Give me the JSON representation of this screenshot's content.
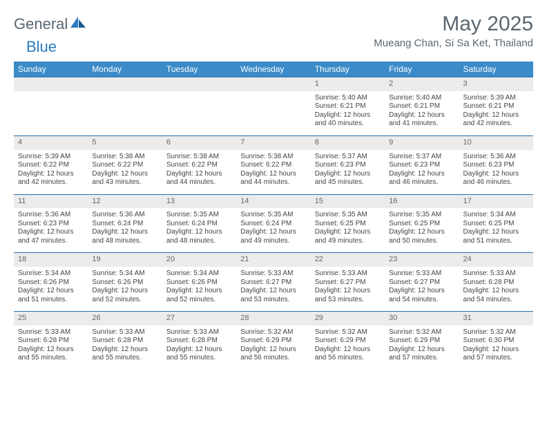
{
  "logo": {
    "text1": "General",
    "text2": "Blue"
  },
  "header": {
    "title": "May 2025",
    "location": "Mueang Chan, Si Sa Ket, Thailand"
  },
  "calendar": {
    "day_headers": [
      "Sunday",
      "Monday",
      "Tuesday",
      "Wednesday",
      "Thursday",
      "Friday",
      "Saturday"
    ],
    "header_bg": "#3b8bc8",
    "header_fg": "#ffffff",
    "border_color": "#2b6fa8",
    "daynum_bg": "#ececec",
    "weeks": [
      [
        {
          "blank": true
        },
        {
          "blank": true
        },
        {
          "blank": true
        },
        {
          "blank": true
        },
        {
          "day": "1",
          "sunrise": "Sunrise: 5:40 AM",
          "sunset": "Sunset: 6:21 PM",
          "daylight1": "Daylight: 12 hours",
          "daylight2": "and 40 minutes."
        },
        {
          "day": "2",
          "sunrise": "Sunrise: 5:40 AM",
          "sunset": "Sunset: 6:21 PM",
          "daylight1": "Daylight: 12 hours",
          "daylight2": "and 41 minutes."
        },
        {
          "day": "3",
          "sunrise": "Sunrise: 5:39 AM",
          "sunset": "Sunset: 6:21 PM",
          "daylight1": "Daylight: 12 hours",
          "daylight2": "and 42 minutes."
        }
      ],
      [
        {
          "day": "4",
          "sunrise": "Sunrise: 5:39 AM",
          "sunset": "Sunset: 6:22 PM",
          "daylight1": "Daylight: 12 hours",
          "daylight2": "and 42 minutes."
        },
        {
          "day": "5",
          "sunrise": "Sunrise: 5:38 AM",
          "sunset": "Sunset: 6:22 PM",
          "daylight1": "Daylight: 12 hours",
          "daylight2": "and 43 minutes."
        },
        {
          "day": "6",
          "sunrise": "Sunrise: 5:38 AM",
          "sunset": "Sunset: 6:22 PM",
          "daylight1": "Daylight: 12 hours",
          "daylight2": "and 44 minutes."
        },
        {
          "day": "7",
          "sunrise": "Sunrise: 5:38 AM",
          "sunset": "Sunset: 6:22 PM",
          "daylight1": "Daylight: 12 hours",
          "daylight2": "and 44 minutes."
        },
        {
          "day": "8",
          "sunrise": "Sunrise: 5:37 AM",
          "sunset": "Sunset: 6:23 PM",
          "daylight1": "Daylight: 12 hours",
          "daylight2": "and 45 minutes."
        },
        {
          "day": "9",
          "sunrise": "Sunrise: 5:37 AM",
          "sunset": "Sunset: 6:23 PM",
          "daylight1": "Daylight: 12 hours",
          "daylight2": "and 46 minutes."
        },
        {
          "day": "10",
          "sunrise": "Sunrise: 5:36 AM",
          "sunset": "Sunset: 6:23 PM",
          "daylight1": "Daylight: 12 hours",
          "daylight2": "and 46 minutes."
        }
      ],
      [
        {
          "day": "11",
          "sunrise": "Sunrise: 5:36 AM",
          "sunset": "Sunset: 6:23 PM",
          "daylight1": "Daylight: 12 hours",
          "daylight2": "and 47 minutes."
        },
        {
          "day": "12",
          "sunrise": "Sunrise: 5:36 AM",
          "sunset": "Sunset: 6:24 PM",
          "daylight1": "Daylight: 12 hours",
          "daylight2": "and 48 minutes."
        },
        {
          "day": "13",
          "sunrise": "Sunrise: 5:35 AM",
          "sunset": "Sunset: 6:24 PM",
          "daylight1": "Daylight: 12 hours",
          "daylight2": "and 48 minutes."
        },
        {
          "day": "14",
          "sunrise": "Sunrise: 5:35 AM",
          "sunset": "Sunset: 6:24 PM",
          "daylight1": "Daylight: 12 hours",
          "daylight2": "and 49 minutes."
        },
        {
          "day": "15",
          "sunrise": "Sunrise: 5:35 AM",
          "sunset": "Sunset: 6:25 PM",
          "daylight1": "Daylight: 12 hours",
          "daylight2": "and 49 minutes."
        },
        {
          "day": "16",
          "sunrise": "Sunrise: 5:35 AM",
          "sunset": "Sunset: 6:25 PM",
          "daylight1": "Daylight: 12 hours",
          "daylight2": "and 50 minutes."
        },
        {
          "day": "17",
          "sunrise": "Sunrise: 5:34 AM",
          "sunset": "Sunset: 6:25 PM",
          "daylight1": "Daylight: 12 hours",
          "daylight2": "and 51 minutes."
        }
      ],
      [
        {
          "day": "18",
          "sunrise": "Sunrise: 5:34 AM",
          "sunset": "Sunset: 6:26 PM",
          "daylight1": "Daylight: 12 hours",
          "daylight2": "and 51 minutes."
        },
        {
          "day": "19",
          "sunrise": "Sunrise: 5:34 AM",
          "sunset": "Sunset: 6:26 PM",
          "daylight1": "Daylight: 12 hours",
          "daylight2": "and 52 minutes."
        },
        {
          "day": "20",
          "sunrise": "Sunrise: 5:34 AM",
          "sunset": "Sunset: 6:26 PM",
          "daylight1": "Daylight: 12 hours",
          "daylight2": "and 52 minutes."
        },
        {
          "day": "21",
          "sunrise": "Sunrise: 5:33 AM",
          "sunset": "Sunset: 6:27 PM",
          "daylight1": "Daylight: 12 hours",
          "daylight2": "and 53 minutes."
        },
        {
          "day": "22",
          "sunrise": "Sunrise: 5:33 AM",
          "sunset": "Sunset: 6:27 PM",
          "daylight1": "Daylight: 12 hours",
          "daylight2": "and 53 minutes."
        },
        {
          "day": "23",
          "sunrise": "Sunrise: 5:33 AM",
          "sunset": "Sunset: 6:27 PM",
          "daylight1": "Daylight: 12 hours",
          "daylight2": "and 54 minutes."
        },
        {
          "day": "24",
          "sunrise": "Sunrise: 5:33 AM",
          "sunset": "Sunset: 6:28 PM",
          "daylight1": "Daylight: 12 hours",
          "daylight2": "and 54 minutes."
        }
      ],
      [
        {
          "day": "25",
          "sunrise": "Sunrise: 5:33 AM",
          "sunset": "Sunset: 6:28 PM",
          "daylight1": "Daylight: 12 hours",
          "daylight2": "and 55 minutes."
        },
        {
          "day": "26",
          "sunrise": "Sunrise: 5:33 AM",
          "sunset": "Sunset: 6:28 PM",
          "daylight1": "Daylight: 12 hours",
          "daylight2": "and 55 minutes."
        },
        {
          "day": "27",
          "sunrise": "Sunrise: 5:33 AM",
          "sunset": "Sunset: 6:28 PM",
          "daylight1": "Daylight: 12 hours",
          "daylight2": "and 55 minutes."
        },
        {
          "day": "28",
          "sunrise": "Sunrise: 5:32 AM",
          "sunset": "Sunset: 6:29 PM",
          "daylight1": "Daylight: 12 hours",
          "daylight2": "and 56 minutes."
        },
        {
          "day": "29",
          "sunrise": "Sunrise: 5:32 AM",
          "sunset": "Sunset: 6:29 PM",
          "daylight1": "Daylight: 12 hours",
          "daylight2": "and 56 minutes."
        },
        {
          "day": "30",
          "sunrise": "Sunrise: 5:32 AM",
          "sunset": "Sunset: 6:29 PM",
          "daylight1": "Daylight: 12 hours",
          "daylight2": "and 57 minutes."
        },
        {
          "day": "31",
          "sunrise": "Sunrise: 5:32 AM",
          "sunset": "Sunset: 6:30 PM",
          "daylight1": "Daylight: 12 hours",
          "daylight2": "and 57 minutes."
        }
      ]
    ]
  }
}
